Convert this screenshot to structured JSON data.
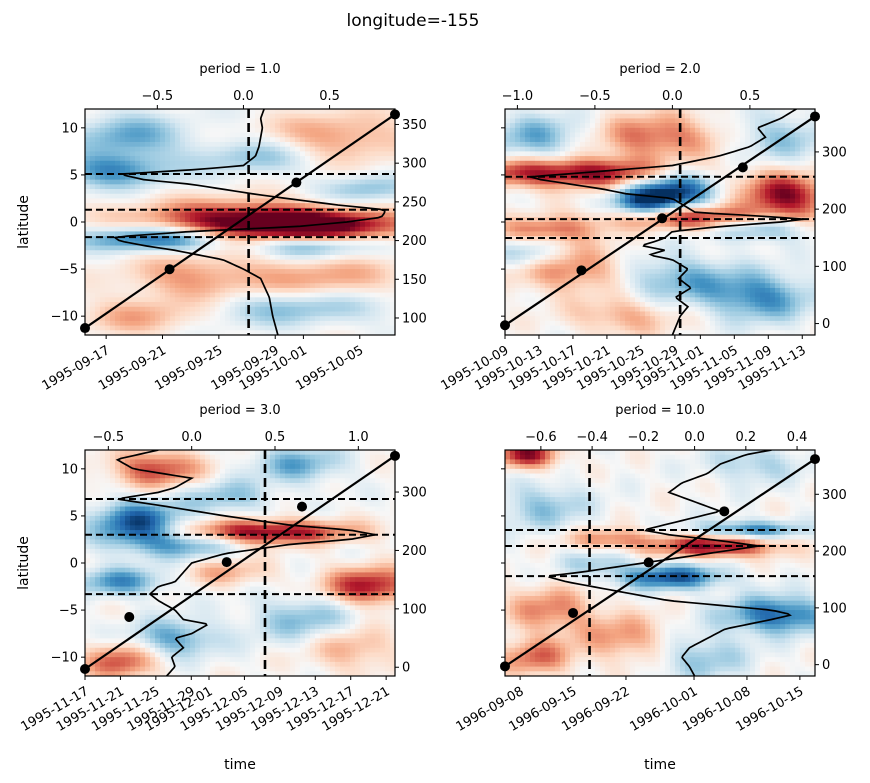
{
  "figure": {
    "suptitle": "longitude=-155",
    "colormap": [
      "#053061",
      "#2166ac",
      "#4393c3",
      "#92c5de",
      "#d1e5f0",
      "#f7f7f7",
      "#fddbc7",
      "#f4a582",
      "#d6604d",
      "#b2182b",
      "#67001f"
    ]
  },
  "chart_data": [
    {
      "type": "heatmap",
      "panel": "top-left",
      "title": "period = 1.0",
      "ylabel": "latitude",
      "xlabel": "",
      "ylim": [
        -12,
        12
      ],
      "yticks": [
        -10,
        -5,
        0,
        5,
        10
      ],
      "bottom_xtick_labels": [
        "1995-09-17",
        "1995-09-21",
        "1995-09-25",
        "1995-09-29",
        "1995-10-01",
        "1995-10-05"
      ],
      "bottom_xtick_values": [
        1.5,
        5.5,
        9.5,
        13.5,
        15.5,
        19.5
      ],
      "time_range_days": [
        0,
        22
      ],
      "top_axis": {
        "xlim": [
          -0.92,
          0.88
        ],
        "ticks": [
          -0.5,
          0.0,
          0.5
        ],
        "tick_labels": [
          "−0.5",
          "0.0",
          "0.5"
        ]
      },
      "right_axis": {
        "ylim": [
          78,
          370
        ],
        "ticks": [
          100,
          150,
          200,
          250,
          300,
          350
        ],
        "tick_labels": [
          "100",
          "150",
          "200",
          "250",
          "300",
          "350"
        ]
      },
      "vline_period_value": 0.03,
      "hlines_latitude": [
        5.1,
        1.3,
        -1.6
      ],
      "profile": {
        "lat": [
          -12,
          -10,
          -8,
          -6,
          -5,
          -4,
          -3,
          -2.5,
          -2,
          -1.6,
          -1,
          -0.5,
          0,
          0.5,
          1,
          1.3,
          1.8,
          2.5,
          3,
          4,
          4.5,
          5,
          5.1,
          5.6,
          6,
          7,
          8,
          9,
          10,
          11,
          12
        ],
        "value": [
          0.2,
          0.17,
          0.15,
          0.1,
          0.0,
          -0.12,
          -0.4,
          -0.58,
          -0.72,
          -0.75,
          -0.3,
          0.3,
          0.6,
          0.8,
          0.82,
          0.82,
          0.55,
          0.25,
          0.05,
          -0.3,
          -0.58,
          -0.7,
          -0.7,
          -0.25,
          0.0,
          0.07,
          0.09,
          0.1,
          0.11,
          0.1,
          0.12
        ]
      },
      "diagonal": {
        "x_days": [
          0,
          22
        ],
        "right_values": [
          87,
          363
        ]
      },
      "markers": [
        {
          "x_days": 0,
          "right_value": 87
        },
        {
          "x_days": 6,
          "right_value": 163
        },
        {
          "x_days": 15,
          "right_value": 275
        },
        {
          "x_days": 22,
          "right_value": 363
        }
      ],
      "field_blobs": [
        {
          "t": 2,
          "lat": 5.5,
          "w": 4,
          "h": 1.8,
          "v": -0.6
        },
        {
          "t": 11,
          "lat": 0.2,
          "w": 7,
          "h": 2.0,
          "v": 0.95
        },
        {
          "t": 17,
          "lat": -0.5,
          "w": 6,
          "h": 1.6,
          "v": 0.9
        },
        {
          "t": 5,
          "lat": -1.8,
          "w": 5,
          "h": 1.3,
          "v": -0.85
        },
        {
          "t": 16,
          "lat": -2.5,
          "w": 4,
          "h": 1.3,
          "v": -0.6
        },
        {
          "t": 3,
          "lat": 9,
          "w": 4,
          "h": 2.5,
          "v": -0.5
        },
        {
          "t": 18,
          "lat": 9,
          "w": 5,
          "h": 2.5,
          "v": 0.45
        },
        {
          "t": 12,
          "lat": 7,
          "w": 4,
          "h": 2.0,
          "v": -0.4
        },
        {
          "t": 8,
          "lat": -6,
          "w": 5,
          "h": 2.5,
          "v": 0.45
        },
        {
          "t": 17,
          "lat": -6,
          "w": 5,
          "h": 2.5,
          "v": 0.4
        },
        {
          "t": 15,
          "lat": -9,
          "w": 6,
          "h": 2.0,
          "v": -0.45
        },
        {
          "t": 4,
          "lat": -10,
          "w": 4,
          "h": 2.0,
          "v": 0.35
        },
        {
          "t": 20,
          "lat": 3.5,
          "w": 3,
          "h": 1.5,
          "v": -0.4
        }
      ]
    },
    {
      "type": "heatmap",
      "panel": "top-right",
      "title": "period = 2.0",
      "ylabel": "",
      "xlabel": "",
      "ylim": [
        -12,
        12
      ],
      "yticks": [
        -10,
        -5,
        0,
        5,
        10
      ],
      "bottom_xtick_labels": [
        "1995-10-09",
        "1995-10-13",
        "1995-10-17",
        "1995-10-21",
        "1995-10-25",
        "1995-10-29",
        "1995-11-01",
        "1995-11-05",
        "1995-11-09",
        "1995-11-13"
      ],
      "bottom_xtick_values": [
        0,
        4,
        8,
        12,
        16,
        20,
        23,
        27,
        31,
        35
      ],
      "time_range_days": [
        0,
        36.5
      ],
      "top_axis": {
        "xlim": [
          -1.08,
          0.92
        ],
        "ticks": [
          -1.0,
          -0.5,
          0.0,
          0.5
        ],
        "tick_labels": [
          "−1.0",
          "−0.5",
          "0.0",
          "0.5"
        ]
      },
      "right_axis": {
        "ylim": [
          -20,
          375
        ],
        "ticks": [
          0,
          100,
          200,
          300
        ],
        "tick_labels": [
          "0",
          "100",
          "200",
          "300"
        ]
      },
      "vline_period_value": 0.05,
      "hlines_latitude": [
        4.8,
        0.3,
        -1.7
      ],
      "profile": {
        "lat": [
          -12,
          -10,
          -9,
          -8,
          -7,
          -6,
          -5,
          -4,
          -3.5,
          -3,
          -2.5,
          -2,
          -1.7,
          -1,
          -0.5,
          0,
          0.3,
          0.7,
          1,
          1.5,
          2,
          2.5,
          3,
          3.5,
          4,
          4.5,
          4.8,
          5.2,
          6,
          7,
          8,
          9,
          10,
          11,
          12
        ],
        "value": [
          0.0,
          0.05,
          0.1,
          0.02,
          0.12,
          0.04,
          0.1,
          0.0,
          -0.15,
          -0.05,
          -0.2,
          -0.1,
          -0.05,
          0.0,
          0.3,
          0.7,
          0.85,
          0.5,
          0.15,
          0.1,
          0.05,
          0.0,
          -0.3,
          -0.45,
          -0.65,
          -0.85,
          -0.92,
          -0.6,
          0.0,
          0.3,
          0.5,
          0.6,
          0.55,
          0.7,
          0.8
        ]
      },
      "diagonal": {
        "x_days": [
          0,
          36.5
        ],
        "right_values": [
          -3,
          362
        ]
      },
      "markers": [
        {
          "x_days": 0,
          "right_value": -3
        },
        {
          "x_days": 9,
          "right_value": 93
        },
        {
          "x_days": 18.5,
          "right_value": 184
        },
        {
          "x_days": 28,
          "right_value": 273
        },
        {
          "x_days": 36.5,
          "right_value": 362
        }
      ],
      "field_blobs": [
        {
          "t": 8,
          "lat": 5.2,
          "w": 14,
          "h": 1.6,
          "v": 0.95
        },
        {
          "t": 20,
          "lat": 3.5,
          "w": 5,
          "h": 2.5,
          "v": -0.95
        },
        {
          "t": 16,
          "lat": 2.0,
          "w": 4,
          "h": 1.8,
          "v": -0.7
        },
        {
          "t": 33,
          "lat": 2.8,
          "w": 5,
          "h": 2.2,
          "v": 0.95
        },
        {
          "t": 22,
          "lat": 0.5,
          "w": 10,
          "h": 1.3,
          "v": 0.9
        },
        {
          "t": 5,
          "lat": -0.8,
          "w": 6,
          "h": 1.3,
          "v": 0.55
        },
        {
          "t": 30,
          "lat": -0.5,
          "w": 5,
          "h": 1.5,
          "v": -0.6
        },
        {
          "t": 4,
          "lat": 9,
          "w": 6,
          "h": 2.5,
          "v": -0.5
        },
        {
          "t": 18,
          "lat": 9,
          "w": 8,
          "h": 2.5,
          "v": 0.6
        },
        {
          "t": 32,
          "lat": 9,
          "w": 6,
          "h": 2.5,
          "v": -0.4
        },
        {
          "t": 8,
          "lat": -5,
          "w": 7,
          "h": 2.5,
          "v": 0.55
        },
        {
          "t": 20,
          "lat": -6,
          "w": 7,
          "h": 2.5,
          "v": -0.5
        },
        {
          "t": 30,
          "lat": -8,
          "w": 6,
          "h": 2.5,
          "v": -0.65
        },
        {
          "t": 14,
          "lat": -10,
          "w": 6,
          "h": 2.0,
          "v": 0.4
        },
        {
          "t": 3,
          "lat": -3.5,
          "w": 4,
          "h": 1.5,
          "v": -0.45
        }
      ]
    },
    {
      "type": "heatmap",
      "panel": "bottom-left",
      "title": "period = 3.0",
      "ylabel": "latitude",
      "xlabel": "time",
      "ylim": [
        -12,
        12
      ],
      "yticks": [
        -10,
        -5,
        0,
        5,
        10
      ],
      "bottom_xtick_labels": [
        "1995-11-17",
        "1995-11-21",
        "1995-11-25",
        "1995-11-29",
        "1995-12-01",
        "1995-12-05",
        "1995-12-09",
        "1995-12-13",
        "1995-12-17",
        "1995-12-21"
      ],
      "bottom_xtick_values": [
        0,
        4,
        8,
        12,
        14,
        18,
        22,
        26,
        30,
        34
      ],
      "time_range_days": [
        0,
        35
      ],
      "top_axis": {
        "xlim": [
          -0.64,
          1.22
        ],
        "ticks": [
          -0.5,
          0.0,
          0.5,
          1.0
        ],
        "tick_labels": [
          "−0.5",
          "0.0",
          "0.5",
          "1.0"
        ]
      },
      "right_axis": {
        "ylim": [
          -15,
          372
        ],
        "ticks": [
          0,
          100,
          200,
          300
        ],
        "tick_labels": [
          "0",
          "100",
          "200",
          "300"
        ]
      },
      "vline_period_value": 0.44,
      "hlines_latitude": [
        6.8,
        3.0,
        -3.3
      ],
      "profile": {
        "lat": [
          -12,
          -11,
          -10,
          -9,
          -8,
          -7.5,
          -7,
          -6.5,
          -6,
          -5,
          -4,
          -3.3,
          -2.5,
          -2,
          -1,
          0,
          1,
          2,
          2.5,
          3.0,
          3.5,
          4,
          5,
          6,
          6.8,
          7.5,
          8,
          9,
          10,
          11,
          12
        ],
        "value": [
          -0.15,
          -0.1,
          -0.12,
          -0.05,
          -0.1,
          0.0,
          0.05,
          0.1,
          -0.05,
          -0.1,
          -0.2,
          -0.25,
          -0.2,
          -0.1,
          -0.05,
          0.0,
          0.2,
          0.6,
          0.95,
          1.1,
          0.95,
          0.6,
          0.2,
          -0.15,
          -0.45,
          -0.2,
          -0.1,
          0.0,
          -0.35,
          -0.45,
          -0.2
        ]
      },
      "diagonal": {
        "x_days": [
          0,
          35
        ],
        "right_values": [
          -3,
          362
        ]
      },
      "markers": [
        {
          "x_days": 0,
          "right_value": -3
        },
        {
          "x_days": 5,
          "right_value": 86
        },
        {
          "x_days": 16,
          "right_value": 180
        },
        {
          "x_days": 24.5,
          "right_value": 275
        },
        {
          "x_days": 35,
          "right_value": 362
        }
      ],
      "field_blobs": [
        {
          "t": 6,
          "lat": 4.0,
          "w": 5,
          "h": 2.5,
          "v": -0.95
        },
        {
          "t": 20,
          "lat": 3.3,
          "w": 10,
          "h": 1.3,
          "v": 0.95
        },
        {
          "t": 12,
          "lat": 2.0,
          "w": 5,
          "h": 1.5,
          "v": -0.5
        },
        {
          "t": 32,
          "lat": -2.5,
          "w": 5,
          "h": 2.0,
          "v": 0.85
        },
        {
          "t": 4,
          "lat": -2,
          "w": 5,
          "h": 1.5,
          "v": -0.6
        },
        {
          "t": 8,
          "lat": 10,
          "w": 5,
          "h": 2.0,
          "v": 0.7
        },
        {
          "t": 24,
          "lat": 10.5,
          "w": 5,
          "h": 2.0,
          "v": -0.5
        },
        {
          "t": 16,
          "lat": 7,
          "w": 5,
          "h": 1.8,
          "v": -0.4
        },
        {
          "t": 10,
          "lat": -8,
          "w": 5,
          "h": 2.0,
          "v": -0.55
        },
        {
          "t": 25,
          "lat": -6,
          "w": 6,
          "h": 2.5,
          "v": -0.45
        },
        {
          "t": 4,
          "lat": -10.5,
          "w": 4,
          "h": 2.0,
          "v": 0.65
        },
        {
          "t": 30,
          "lat": -9,
          "w": 5,
          "h": 2.5,
          "v": 0.4
        },
        {
          "t": 16,
          "lat": -1,
          "w": 5,
          "h": 1.5,
          "v": 0.35
        }
      ]
    },
    {
      "type": "heatmap",
      "panel": "bottom-right",
      "title": "period = 10.0",
      "ylabel": "",
      "xlabel": "time",
      "ylim": [
        -12,
        12
      ],
      "yticks": [
        -10,
        -5,
        0,
        5,
        10
      ],
      "bottom_xtick_labels": [
        "1996-09-08",
        "1996-09-15",
        "1996-09-22",
        "1996-10-01",
        "1996-10-08",
        "1996-10-15"
      ],
      "bottom_xtick_values": [
        2,
        9,
        16,
        25,
        32,
        39
      ],
      "time_range_days": [
        0,
        41
      ],
      "top_axis": {
        "xlim": [
          -0.74,
          0.47
        ],
        "ticks": [
          -0.6,
          -0.4,
          -0.2,
          0.0,
          0.2,
          0.4
        ],
        "tick_labels": [
          "−0.6",
          "−0.4",
          "−0.2",
          "0.0",
          "0.2",
          "0.4"
        ]
      },
      "right_axis": {
        "ylim": [
          -20,
          378
        ],
        "ticks": [
          0,
          100,
          200,
          300
        ],
        "tick_labels": [
          "0",
          "100",
          "200",
          "300"
        ]
      },
      "vline_period_value": -0.41,
      "hlines_latitude": [
        3.5,
        1.8,
        -1.4
      ],
      "profile": {
        "lat": [
          -12,
          -11,
          -10,
          -9,
          -8,
          -7,
          -6,
          -5.5,
          -5,
          -4.5,
          -4,
          -3,
          -2,
          -1.4,
          -1,
          0,
          1,
          1.8,
          2.3,
          3,
          3.5,
          4.5,
          5.5,
          6.5,
          7.5,
          8.5,
          9.5,
          10.5,
          11.5,
          12
        ],
        "value": [
          0.0,
          -0.02,
          -0.05,
          -0.02,
          0.05,
          0.12,
          0.3,
          0.38,
          0.3,
          0.1,
          -0.1,
          -0.3,
          -0.5,
          -0.58,
          -0.45,
          -0.2,
          0.05,
          0.25,
          0.12,
          -0.1,
          -0.2,
          -0.05,
          0.1,
          0.0,
          -0.1,
          -0.05,
          0.05,
          0.1,
          0.2,
          0.3
        ]
      },
      "diagonal": {
        "x_days": [
          0,
          41
        ],
        "right_values": [
          -3,
          362
        ]
      },
      "markers": [
        {
          "x_days": 0,
          "right_value": -3
        },
        {
          "x_days": 9,
          "right_value": 91
        },
        {
          "x_days": 19,
          "right_value": 180
        },
        {
          "x_days": 29,
          "right_value": 270
        },
        {
          "x_days": 41,
          "right_value": 362
        }
      ],
      "field_blobs": [
        {
          "t": 28,
          "lat": 1.8,
          "w": 8,
          "h": 1.2,
          "v": 0.95
        },
        {
          "t": 14,
          "lat": 2.5,
          "w": 6,
          "h": 1.2,
          "v": 0.5
        },
        {
          "t": 32,
          "lat": 3.5,
          "w": 7,
          "h": 1.0,
          "v": -0.7
        },
        {
          "t": 22,
          "lat": -1.5,
          "w": 7,
          "h": 1.3,
          "v": -0.85
        },
        {
          "t": 36,
          "lat": -5.5,
          "w": 7,
          "h": 2.0,
          "v": -0.8
        },
        {
          "t": 6,
          "lat": -5,
          "w": 6,
          "h": 2.5,
          "v": 0.5
        },
        {
          "t": 16,
          "lat": -8,
          "w": 6,
          "h": 2.5,
          "v": 0.45
        },
        {
          "t": 3,
          "lat": 11.5,
          "w": 4,
          "h": 1.5,
          "v": 0.9
        },
        {
          "t": 33,
          "lat": 10.5,
          "w": 6,
          "h": 2.0,
          "v": -0.35
        },
        {
          "t": 5,
          "lat": 6,
          "w": 6,
          "h": 2.5,
          "v": -0.4
        },
        {
          "t": 26,
          "lat": -10,
          "w": 6,
          "h": 2.5,
          "v": -0.4
        },
        {
          "t": 4,
          "lat": -10,
          "w": 5,
          "h": 2.0,
          "v": 0.55
        },
        {
          "t": 12,
          "lat": 0,
          "w": 5,
          "h": 1.5,
          "v": -0.3
        }
      ]
    }
  ]
}
